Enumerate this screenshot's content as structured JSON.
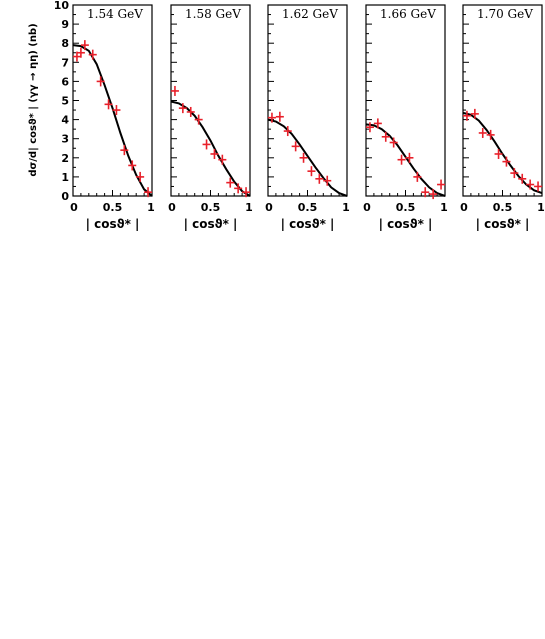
{
  "chart_data": {
    "type": "scatter",
    "ylabel": "dσ/d| cosϑ* | (γγ → ηη) (nb)",
    "xlabel": "| cosϑ* |",
    "xlim": [
      0,
      1
    ],
    "ylim": [
      0,
      10
    ],
    "y_ticks": [
      "0",
      "1",
      "2",
      "3",
      "4",
      "5",
      "6",
      "7",
      "8",
      "9",
      "10"
    ],
    "x_ticks": [
      "0",
      "0.5",
      "1"
    ],
    "colors": {
      "data": "#e8202a",
      "fit": "#000000"
    },
    "panels": [
      {
        "label": "1.54 GeV",
        "points": [
          [
            0.05,
            7.3
          ],
          [
            0.1,
            7.5
          ],
          [
            0.15,
            7.9
          ],
          [
            0.25,
            7.4
          ],
          [
            0.35,
            6.0
          ],
          [
            0.45,
            4.8
          ],
          [
            0.55,
            4.5
          ],
          [
            0.65,
            2.4
          ],
          [
            0.75,
            1.6
          ],
          [
            0.85,
            1.0
          ],
          [
            0.95,
            0.2
          ]
        ],
        "curve": [
          [
            0,
            7.9
          ],
          [
            0.1,
            7.85
          ],
          [
            0.2,
            7.6
          ],
          [
            0.3,
            6.9
          ],
          [
            0.4,
            5.8
          ],
          [
            0.5,
            4.6
          ],
          [
            0.6,
            3.3
          ],
          [
            0.7,
            2.1
          ],
          [
            0.8,
            1.1
          ],
          [
            0.9,
            0.35
          ],
          [
            1.0,
            0.0
          ]
        ]
      },
      {
        "label": "1.58 GeV",
        "points": [
          [
            0.05,
            5.5
          ],
          [
            0.15,
            4.6
          ],
          [
            0.25,
            4.4
          ],
          [
            0.35,
            4.0
          ],
          [
            0.45,
            2.7
          ],
          [
            0.55,
            2.2
          ],
          [
            0.65,
            1.9
          ],
          [
            0.75,
            0.7
          ],
          [
            0.85,
            0.4
          ],
          [
            0.95,
            0.2
          ]
        ],
        "curve": [
          [
            0,
            4.95
          ],
          [
            0.1,
            4.85
          ],
          [
            0.2,
            4.6
          ],
          [
            0.3,
            4.2
          ],
          [
            0.4,
            3.6
          ],
          [
            0.5,
            2.9
          ],
          [
            0.6,
            2.1
          ],
          [
            0.7,
            1.4
          ],
          [
            0.8,
            0.75
          ],
          [
            0.9,
            0.25
          ],
          [
            1.0,
            0.0
          ]
        ]
      },
      {
        "label": "1.62 GeV",
        "points": [
          [
            0.05,
            4.1
          ],
          [
            0.15,
            4.15
          ],
          [
            0.25,
            3.4
          ],
          [
            0.35,
            2.6
          ],
          [
            0.45,
            2.0
          ],
          [
            0.55,
            1.3
          ],
          [
            0.65,
            0.9
          ],
          [
            0.75,
            0.8
          ]
        ],
        "curve": [
          [
            0,
            4.0
          ],
          [
            0.1,
            3.9
          ],
          [
            0.2,
            3.65
          ],
          [
            0.3,
            3.25
          ],
          [
            0.4,
            2.7
          ],
          [
            0.5,
            2.1
          ],
          [
            0.6,
            1.5
          ],
          [
            0.7,
            0.95
          ],
          [
            0.8,
            0.45
          ],
          [
            0.9,
            0.15
          ],
          [
            1.0,
            0.0
          ]
        ]
      },
      {
        "label": "1.66 GeV",
        "points": [
          [
            0.05,
            3.6
          ],
          [
            0.15,
            3.8
          ],
          [
            0.25,
            3.1
          ],
          [
            0.35,
            2.8
          ],
          [
            0.45,
            1.9
          ],
          [
            0.55,
            2.0
          ],
          [
            0.65,
            1.0
          ],
          [
            0.75,
            0.2
          ],
          [
            0.85,
            0.1
          ],
          [
            0.95,
            0.6
          ]
        ],
        "curve": [
          [
            0,
            3.75
          ],
          [
            0.1,
            3.7
          ],
          [
            0.2,
            3.5
          ],
          [
            0.3,
            3.15
          ],
          [
            0.4,
            2.65
          ],
          [
            0.5,
            2.05
          ],
          [
            0.6,
            1.45
          ],
          [
            0.7,
            0.9
          ],
          [
            0.8,
            0.45
          ],
          [
            0.9,
            0.15
          ],
          [
            1.0,
            0.0
          ]
        ]
      },
      {
        "label": "1.70 GeV",
        "points": [
          [
            0.05,
            4.2
          ],
          [
            0.15,
            4.3
          ],
          [
            0.25,
            3.3
          ],
          [
            0.35,
            3.2
          ],
          [
            0.45,
            2.2
          ],
          [
            0.55,
            1.8
          ],
          [
            0.65,
            1.2
          ],
          [
            0.75,
            0.9
          ],
          [
            0.85,
            0.6
          ],
          [
            0.95,
            0.5
          ]
        ],
        "curve": [
          [
            0,
            4.35
          ],
          [
            0.1,
            4.25
          ],
          [
            0.2,
            3.95
          ],
          [
            0.3,
            3.45
          ],
          [
            0.4,
            2.85
          ],
          [
            0.5,
            2.2
          ],
          [
            0.6,
            1.6
          ],
          [
            0.7,
            1.05
          ],
          [
            0.8,
            0.6
          ],
          [
            0.9,
            0.3
          ],
          [
            1.0,
            0.15
          ]
        ]
      }
    ]
  }
}
